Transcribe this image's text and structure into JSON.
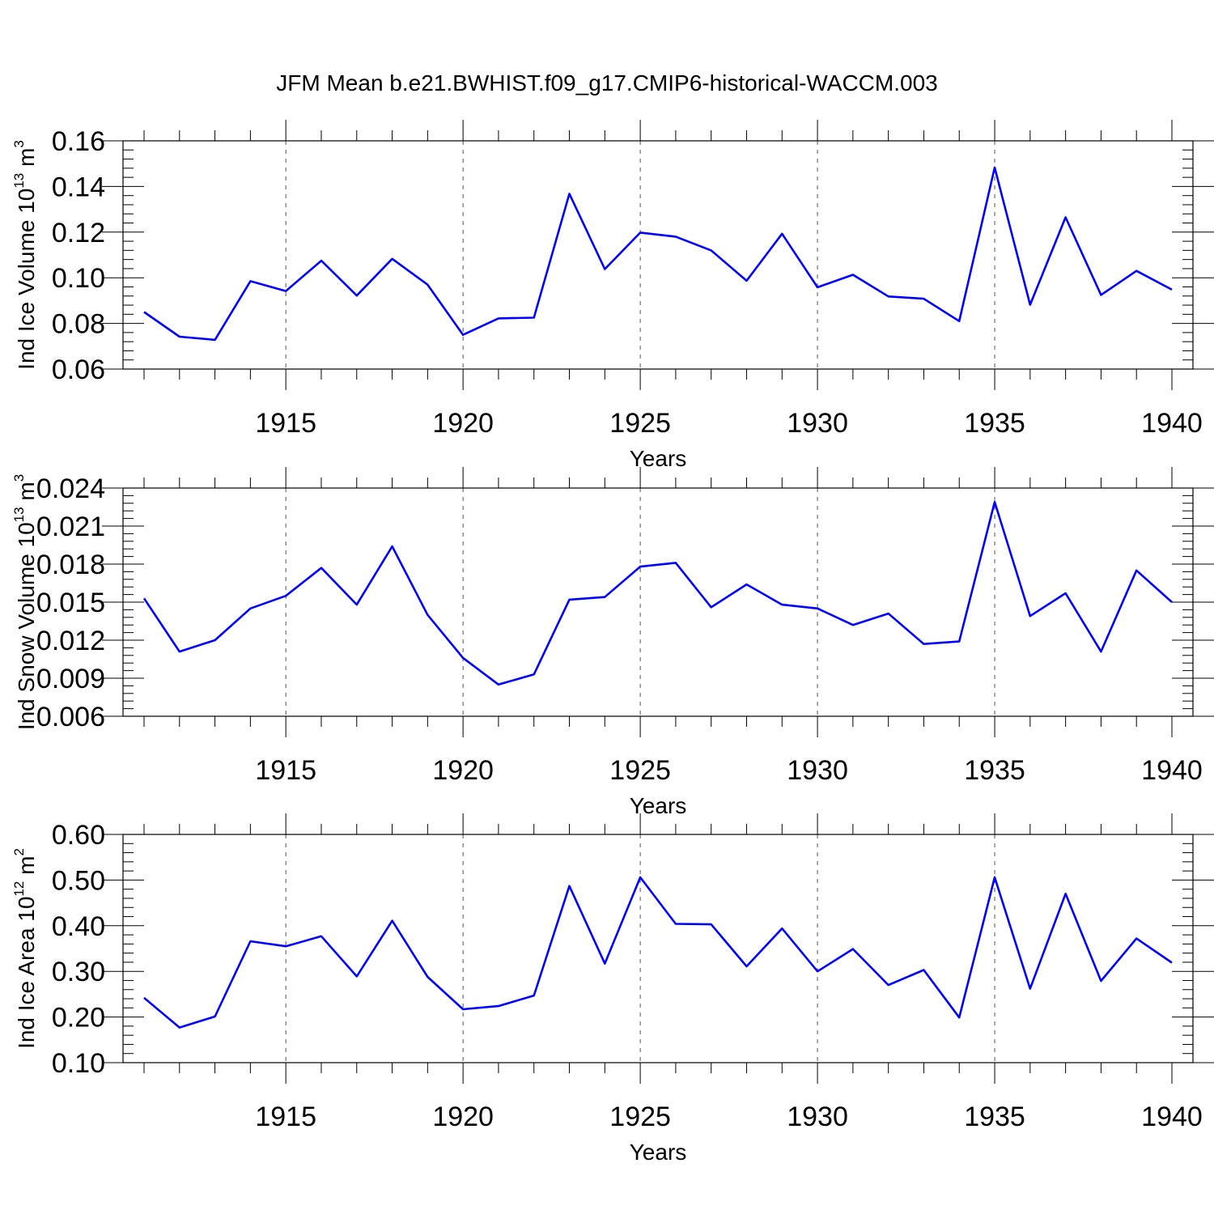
{
  "title": "JFM Mean b.e21.BWHIST.f09_g17.CMIP6-historical-WACCM.003",
  "line_color": "#0000ff",
  "chart_data": [
    {
      "type": "line",
      "ylabel": {
        "text": "Ind Ice Volume 10",
        "sup": "13",
        "unit": " m",
        "unit_sup": "3"
      },
      "xlabel": "Years",
      "xlim": [
        1911,
        1940
      ],
      "ylim": [
        0.06,
        0.16
      ],
      "xticks": [
        "1915",
        "1920",
        "1925",
        "1930",
        "1935",
        "1940"
      ],
      "yticks": [
        "0.06",
        "0.08",
        "0.10",
        "0.12",
        "0.14",
        "0.16"
      ],
      "x": [
        1911,
        1912,
        1913,
        1914,
        1915,
        1916,
        1917,
        1918,
        1919,
        1920,
        1921,
        1922,
        1923,
        1924,
        1925,
        1926,
        1927,
        1928,
        1929,
        1930,
        1931,
        1932,
        1933,
        1934,
        1935,
        1936,
        1937,
        1938,
        1939,
        1940
      ],
      "values": [
        0.085,
        0.0742,
        0.0728,
        0.0985,
        0.0942,
        0.1075,
        0.0922,
        0.1083,
        0.097,
        0.075,
        0.0822,
        0.0825,
        0.1368,
        0.1038,
        0.1198,
        0.118,
        0.112,
        0.0987,
        0.1193,
        0.0958,
        0.1013,
        0.0918,
        0.0908,
        0.081,
        0.1483,
        0.0882,
        0.1265,
        0.0925,
        0.103,
        0.0948
      ]
    },
    {
      "type": "line",
      "ylabel": {
        "text": "Ind Snow Volume 10",
        "sup": "13",
        "unit": " m",
        "unit_sup": "3"
      },
      "xlabel": "Years",
      "xlim": [
        1911,
        1940
      ],
      "ylim": [
        0.006,
        0.024
      ],
      "xticks": [
        "1915",
        "1920",
        "1925",
        "1930",
        "1935",
        "1940"
      ],
      "yticks": [
        "0.006",
        "0.009",
        "0.012",
        "0.015",
        "0.018",
        "0.021",
        "0.024"
      ],
      "x": [
        1911,
        1912,
        1913,
        1914,
        1915,
        1916,
        1917,
        1918,
        1919,
        1920,
        1921,
        1922,
        1923,
        1924,
        1925,
        1926,
        1927,
        1928,
        1929,
        1930,
        1931,
        1932,
        1933,
        1934,
        1935,
        1936,
        1937,
        1938,
        1939,
        1940
      ],
      "values": [
        0.0153,
        0.0111,
        0.012,
        0.0145,
        0.0155,
        0.0177,
        0.0148,
        0.0194,
        0.014,
        0.0106,
        0.0085,
        0.0093,
        0.0152,
        0.0154,
        0.0178,
        0.0181,
        0.0146,
        0.0164,
        0.0148,
        0.0145,
        0.0132,
        0.0141,
        0.0117,
        0.0119,
        0.0229,
        0.0139,
        0.0157,
        0.0111,
        0.0175,
        0.015
      ]
    },
    {
      "type": "line",
      "ylabel": {
        "text": "Ind Ice Area 10",
        "sup": "12",
        "unit": " m",
        "unit_sup": "2"
      },
      "xlabel": "Years",
      "xlim": [
        1911,
        1940
      ],
      "ylim": [
        0.1,
        0.6
      ],
      "xticks": [
        "1915",
        "1920",
        "1925",
        "1930",
        "1935",
        "1940"
      ],
      "yticks": [
        "0.10",
        "0.20",
        "0.30",
        "0.40",
        "0.50",
        "0.60"
      ],
      "x": [
        1911,
        1912,
        1913,
        1914,
        1915,
        1916,
        1917,
        1918,
        1919,
        1920,
        1921,
        1922,
        1923,
        1924,
        1925,
        1926,
        1927,
        1928,
        1929,
        1930,
        1931,
        1932,
        1933,
        1934,
        1935,
        1936,
        1937,
        1938,
        1939,
        1940
      ],
      "values": [
        0.242,
        0.177,
        0.201,
        0.366,
        0.355,
        0.377,
        0.289,
        0.411,
        0.288,
        0.217,
        0.224,
        0.247,
        0.487,
        0.317,
        0.506,
        0.404,
        0.403,
        0.311,
        0.394,
        0.3,
        0.349,
        0.27,
        0.303,
        0.199,
        0.506,
        0.262,
        0.47,
        0.279,
        0.372,
        0.319
      ]
    }
  ]
}
